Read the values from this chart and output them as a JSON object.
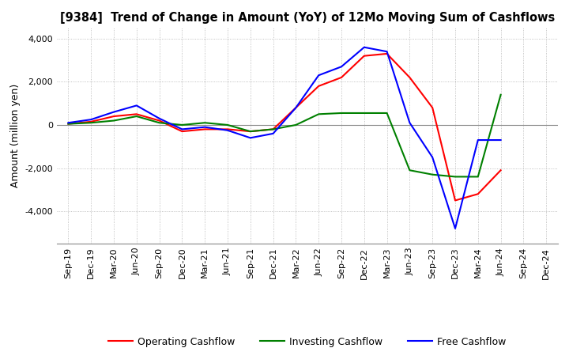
{
  "title": "[9384]  Trend of Change in Amount (YoY) of 12Mo Moving Sum of Cashflows",
  "ylabel": "Amount (million yen)",
  "x_labels": [
    "Sep-19",
    "Dec-19",
    "Mar-20",
    "Jun-20",
    "Sep-20",
    "Dec-20",
    "Mar-21",
    "Jun-21",
    "Sep-21",
    "Dec-21",
    "Mar-22",
    "Jun-22",
    "Sep-22",
    "Dec-22",
    "Mar-23",
    "Jun-23",
    "Sep-23",
    "Dec-23",
    "Mar-24",
    "Jun-24",
    "Sep-24",
    "Dec-24"
  ],
  "operating": [
    50,
    150,
    400,
    500,
    200,
    -300,
    -200,
    -200,
    -300,
    -200,
    800,
    1800,
    2200,
    3200,
    3300,
    2200,
    800,
    -3500,
    -3200,
    -2100,
    null,
    null
  ],
  "investing": [
    50,
    100,
    200,
    400,
    100,
    0,
    100,
    0,
    -300,
    -200,
    0,
    500,
    550,
    550,
    550,
    -2100,
    -2300,
    -2400,
    -2400,
    1400,
    null,
    null
  ],
  "free": [
    100,
    250,
    600,
    900,
    300,
    -200,
    -100,
    -250,
    -600,
    -400,
    800,
    2300,
    2700,
    3600,
    3400,
    100,
    -1500,
    -4800,
    -700,
    -700,
    null,
    null
  ],
  "operating_color": "#ff0000",
  "investing_color": "#008000",
  "free_color": "#0000ff",
  "ylim": [
    -5500,
    4500
  ],
  "yticks": [
    -4000,
    -2000,
    0,
    2000,
    4000
  ],
  "bg_color": "#ffffff",
  "grid_color": "#b0b0b0"
}
